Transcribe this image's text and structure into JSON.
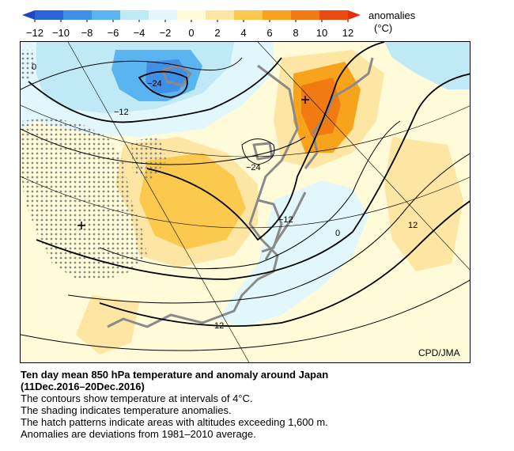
{
  "colorbar": {
    "ticks": [
      "−12",
      "−10",
      "−8",
      "−6",
      "−4",
      "−2",
      "0",
      "2",
      "4",
      "6",
      "8",
      "10",
      "12"
    ],
    "label_line1": "anomalies",
    "label_line2": "(°C)",
    "colors": [
      "#2b63d9",
      "#3f8fe6",
      "#5ab4ef",
      "#bfe9f5",
      "#e2f7fb",
      "#fffbd8",
      "#fde6a3",
      "#fbc94d",
      "#f7a41c",
      "#f27a12",
      "#ea4a0f"
    ]
  },
  "map": {
    "contour_labels": [
      "0",
      "−24",
      "−12",
      "−24",
      "−12",
      "0",
      "12",
      "12"
    ],
    "credit": "CPD/JMA"
  },
  "caption": {
    "title_line1": "Ten day mean 850 hPa temperature and anomaly around Japan",
    "title_line2": "(11Dec.2016–20Dec.2016)",
    "line1": "The contours show temperature at intervals of 4°C.",
    "line2": "The shading indicates temperature anomalies.",
    "line3": "The hatch patterns indicate areas with altitudes exceeding 1,600 m.",
    "line4": "Anomalies are deviations from 1981–2010 average."
  }
}
